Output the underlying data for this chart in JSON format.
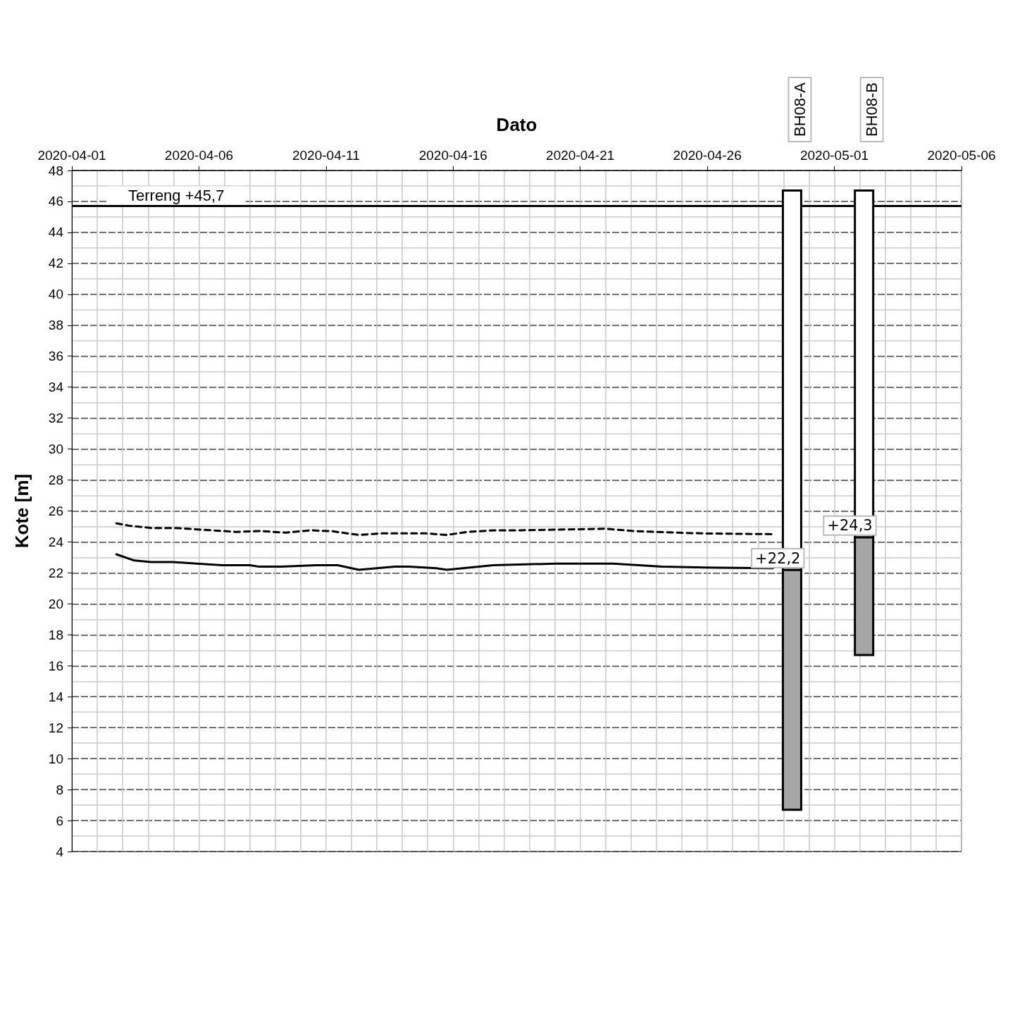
{
  "chart_data": {
    "type": "line",
    "xlabel": "Dato",
    "ylabel": "Kote [m]",
    "xlim": [
      "2020-04-01",
      "2020-05-06"
    ],
    "xticks": [
      "2020-04-01",
      "2020-04-06",
      "2020-04-11",
      "2020-04-16",
      "2020-04-21",
      "2020-04-26",
      "2020-05-01",
      "2020-05-06"
    ],
    "ylim": [
      4,
      48
    ],
    "yticks": [
      4,
      6,
      8,
      10,
      12,
      14,
      16,
      18,
      20,
      22,
      24,
      26,
      28,
      30,
      32,
      34,
      36,
      38,
      40,
      42,
      44,
      46,
      48
    ],
    "grid": true,
    "marker": "none",
    "series": [
      {
        "color": "#000000",
        "line_style": "solid",
        "x": [
          "2020-04-02T18:00",
          "2020-04-03T11:00",
          "2020-04-04T03:00",
          "2020-04-04T23:00",
          "2020-04-05T22:00",
          "2020-04-06T22:00",
          "2020-04-08T00:00",
          "2020-04-08T09:00",
          "2020-04-09T06:00",
          "2020-04-10T15:00",
          "2020-04-11T11:00",
          "2020-04-12T07:00",
          "2020-04-13T17:00",
          "2020-04-14T06:00",
          "2020-04-15T08:00",
          "2020-04-15T18:00",
          "2020-04-17T14:00",
          "2020-04-20T01:00",
          "2020-04-22T07:00",
          "2020-04-24T05:00",
          "2020-04-25T21:00",
          "2020-04-28T14:00"
        ],
        "values": [
          23.2,
          22.8,
          22.7,
          22.7,
          22.6,
          22.5,
          22.5,
          22.4,
          22.4,
          22.5,
          22.5,
          22.2,
          22.4,
          22.4,
          22.3,
          22.2,
          22.5,
          22.6,
          22.6,
          22.4,
          22.35,
          22.3
        ]
      },
      {
        "color": "#000000",
        "line_style": "dashed",
        "x": [
          "2020-04-02T18:00",
          "2020-04-03T06:00",
          "2020-04-04T03:00",
          "2020-04-05T02:00",
          "2020-04-06T12:00",
          "2020-04-07T11:00",
          "2020-04-08T10:00",
          "2020-04-09T10:00",
          "2020-04-10T09:00",
          "2020-04-11T05:00",
          "2020-04-12T07:00",
          "2020-04-13T03:00",
          "2020-04-13T23:00",
          "2020-04-14T23:00",
          "2020-04-15T18:00",
          "2020-04-16T14:00",
          "2020-04-17T14:00",
          "2020-04-18T13:00",
          "2020-04-20T08:00",
          "2020-04-22T00:00",
          "2020-04-23T03:00",
          "2020-04-24T18:00",
          "2020-04-25T21:00",
          "2020-04-28T14:00"
        ],
        "values": [
          25.2,
          25.05,
          24.9,
          24.9,
          24.75,
          24.65,
          24.7,
          24.6,
          24.75,
          24.7,
          24.45,
          24.55,
          24.55,
          24.55,
          24.45,
          24.65,
          24.75,
          24.75,
          24.8,
          24.85,
          24.7,
          24.6,
          24.55,
          24.5
        ]
      },
      {
        "type": "bar",
        "color": "#a6a6a6",
        "x": [
          "2020-04-29T08:00"
        ],
        "base": [
          6.7
        ],
        "values": [
          15.5
        ],
        "value_labels": [
          "+22,2"
        ]
      },
      {
        "type": "bar",
        "name": "BH08-A",
        "color": "#ffffff",
        "x": [
          "2020-04-29T08:00"
        ],
        "base": [
          22.2
        ],
        "values": [
          24.5
        ]
      },
      {
        "type": "bar",
        "color": "#a6a6a6",
        "x": [
          "2020-05-02T04:00"
        ],
        "base": [
          16.7
        ],
        "values": [
          7.6
        ],
        "value_labels": [
          "+24,3"
        ]
      },
      {
        "type": "bar",
        "name": "BH08-B",
        "color": "#ffffff",
        "x": [
          "2020-05-02T04:00"
        ],
        "base": [
          24.3
        ],
        "values": [
          22.4
        ]
      }
    ],
    "ref_lines": [
      {
        "axis": "y",
        "value": 45.7,
        "label": "Terreng +45,7",
        "color": "#000000",
        "line_style": "solid"
      }
    ]
  }
}
